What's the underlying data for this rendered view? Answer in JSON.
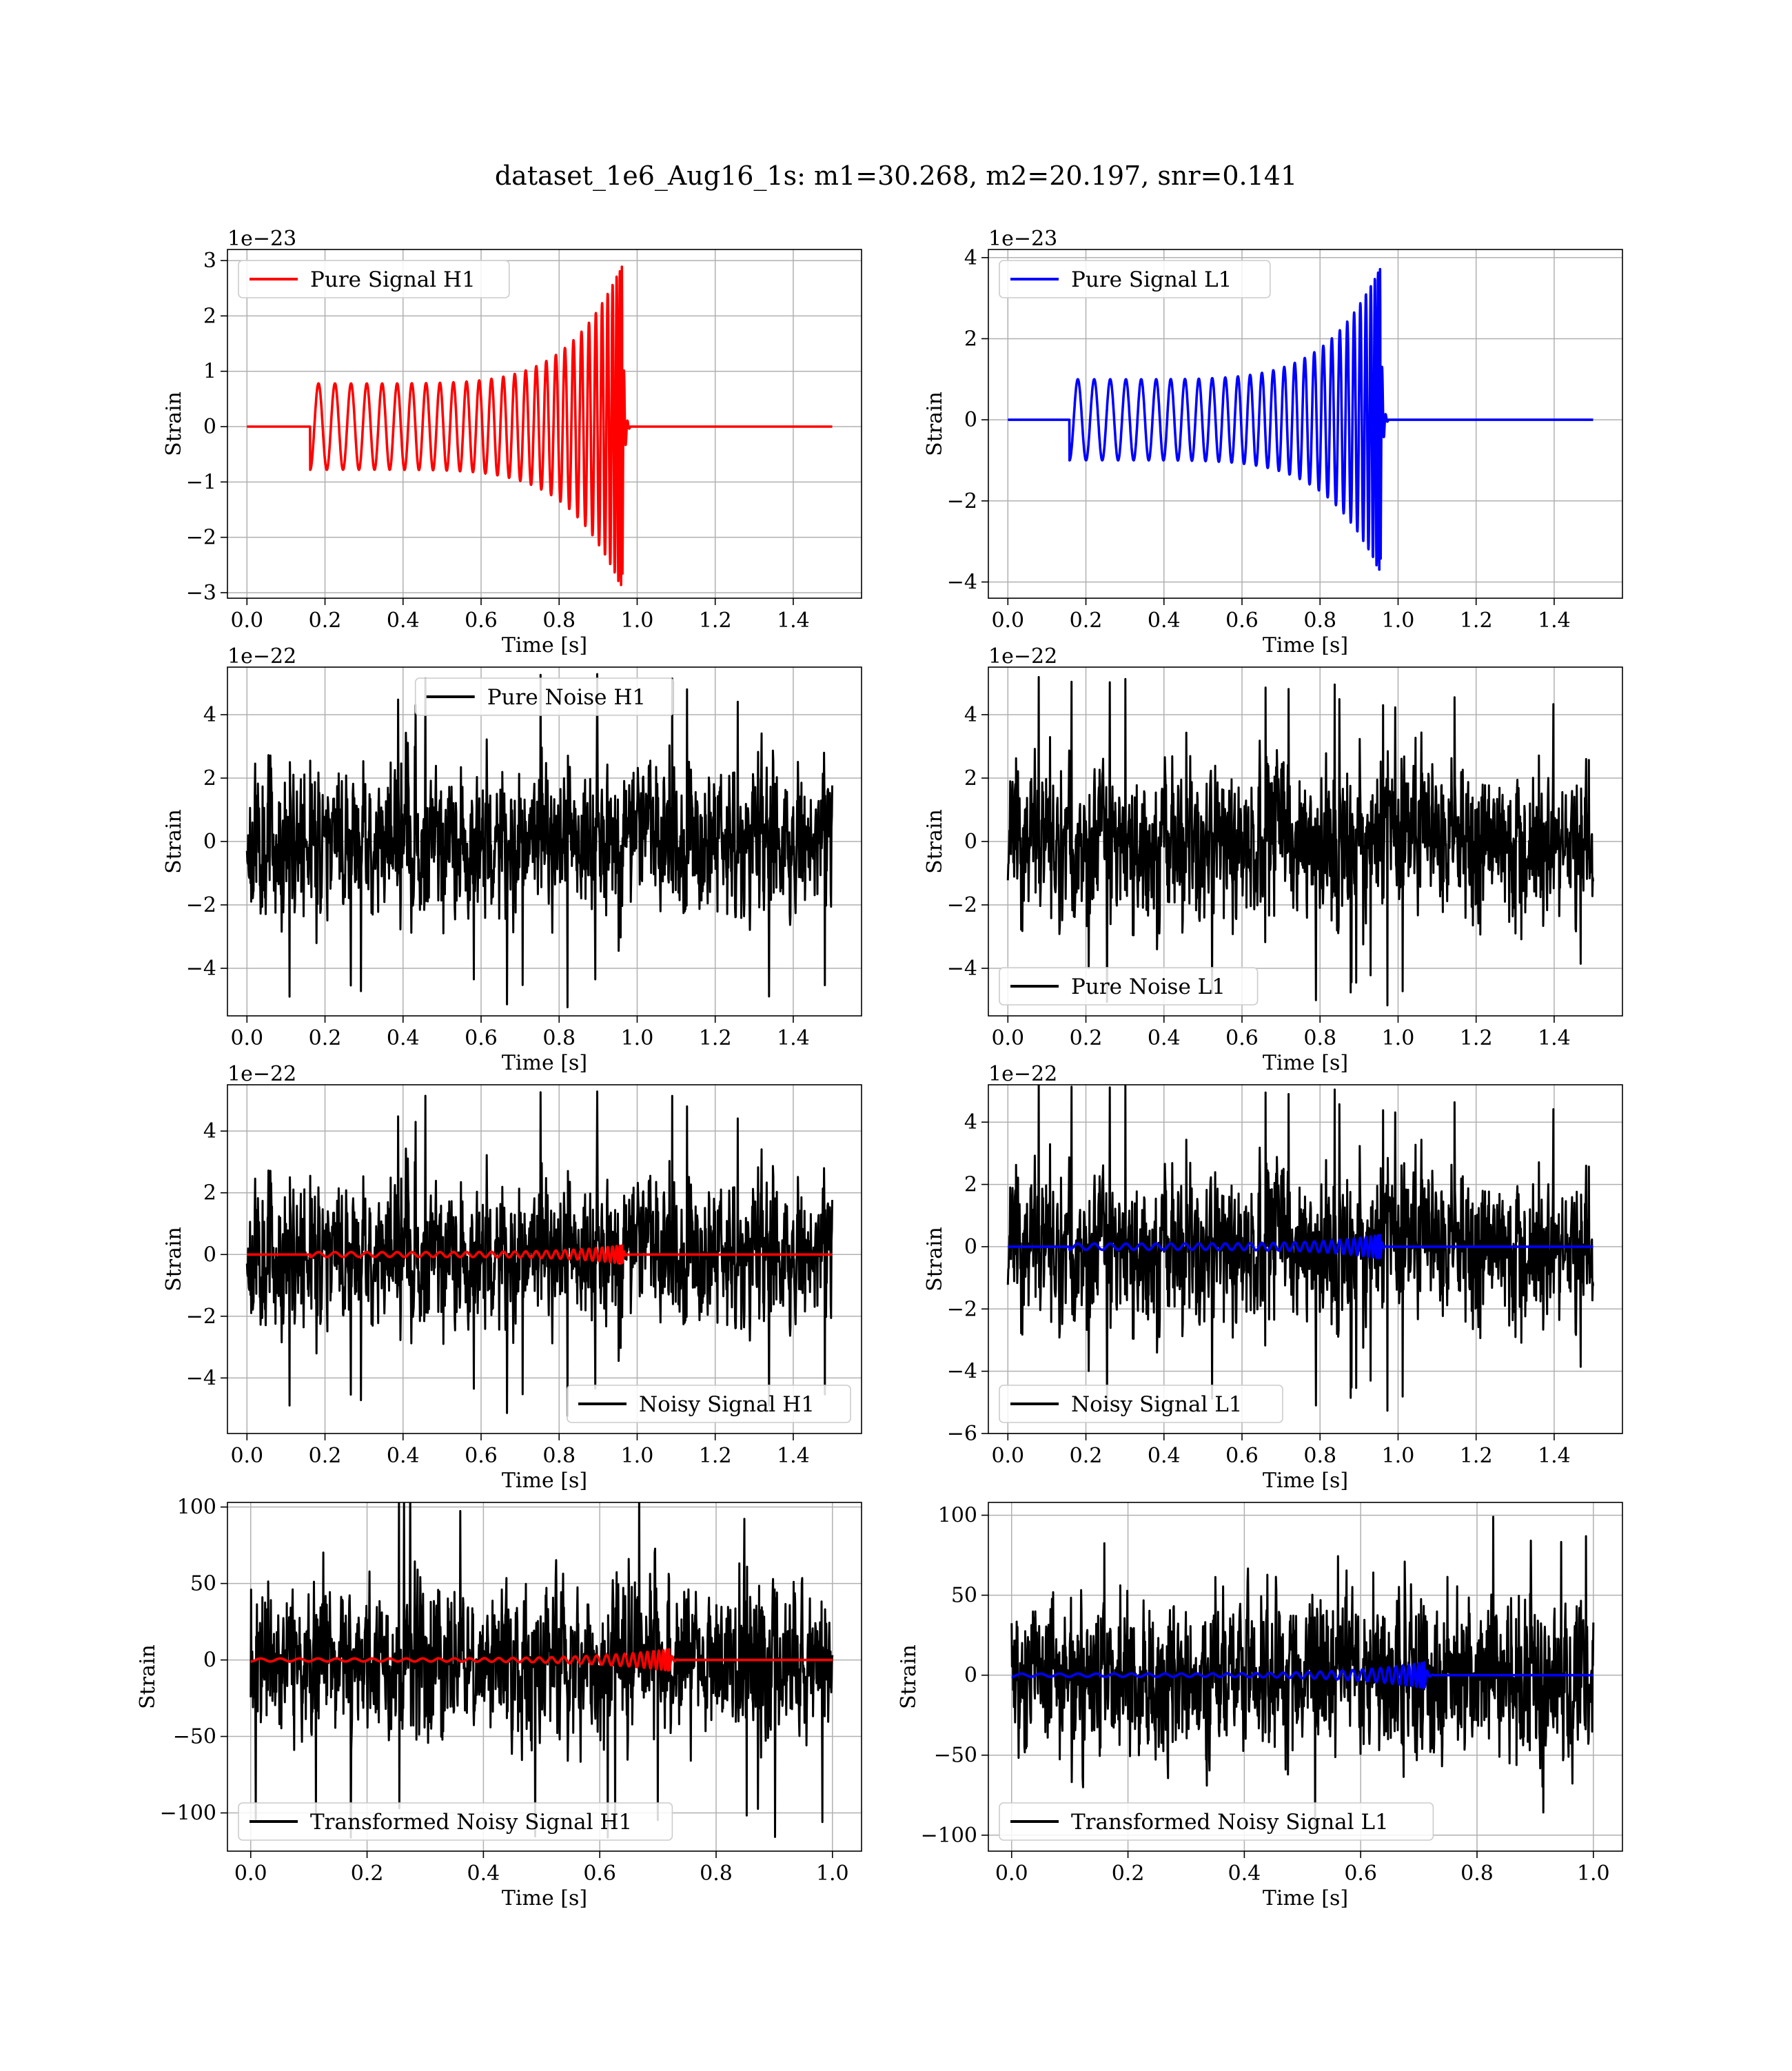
{
  "figure": {
    "title": "dataset_1e6_Aug16_1s: m1=30.268, m2=20.197, snr=0.141"
  },
  "chart_data": [
    {
      "type": "line",
      "id": "pure_signal_h1",
      "xlabel": "Time [s]",
      "ylabel": "Strain",
      "offset_label": "1e−23",
      "xlim": [
        -0.05,
        1.575
      ],
      "ylim": [
        -3.1,
        3.2
      ],
      "xticks": [
        0.0,
        0.2,
        0.4,
        0.6,
        0.8,
        1.0,
        1.2,
        1.4
      ],
      "xtick_labels": [
        "0.0",
        "0.2",
        "0.4",
        "0.6",
        "0.8",
        "1.0",
        "1.2",
        "1.4"
      ],
      "yticks": [
        -3,
        -2,
        -1,
        0,
        1,
        2,
        3
      ],
      "ytick_labels": [
        "−3",
        "−2",
        "−1",
        "0",
        "1",
        "2",
        "3"
      ],
      "legend_position": "upper-left",
      "grid": true,
      "series": [
        {
          "name": "Pure Signal H1",
          "color": "#ff0000",
          "kind": "chirp",
          "x_start": 0.0,
          "x_end": 1.5,
          "onset": 0.162,
          "merger": 0.962,
          "amp_start": 0.78,
          "amp_peak": 2.95,
          "cycles": 30
        }
      ]
    },
    {
      "type": "line",
      "id": "pure_signal_l1",
      "xlabel": "Time [s]",
      "ylabel": "Strain",
      "offset_label": "1e−23",
      "xlim": [
        -0.05,
        1.575
      ],
      "ylim": [
        -4.4,
        4.2
      ],
      "xticks": [
        0.0,
        0.2,
        0.4,
        0.6,
        0.8,
        1.0,
        1.2,
        1.4
      ],
      "xtick_labels": [
        "0.0",
        "0.2",
        "0.4",
        "0.6",
        "0.8",
        "1.0",
        "1.2",
        "1.4"
      ],
      "yticks": [
        -4,
        -2,
        0,
        2,
        4
      ],
      "ytick_labels": [
        "−4",
        "−2",
        "0",
        "2",
        "4"
      ],
      "legend_position": "upper-left",
      "grid": true,
      "series": [
        {
          "name": "Pure Signal L1",
          "color": "#0000ff",
          "kind": "chirp",
          "x_start": 0.0,
          "x_end": 1.5,
          "onset": 0.158,
          "merger": 0.955,
          "amp_start": 1.0,
          "amp_peak": 3.8,
          "cycles": 30
        }
      ]
    },
    {
      "type": "line",
      "id": "pure_noise_h1",
      "xlabel": "Time [s]",
      "ylabel": "Strain",
      "offset_label": "1e−22",
      "xlim": [
        -0.05,
        1.575
      ],
      "ylim": [
        -5.5,
        5.5
      ],
      "xticks": [
        0.0,
        0.2,
        0.4,
        0.6,
        0.8,
        1.0,
        1.2,
        1.4
      ],
      "xtick_labels": [
        "0.0",
        "0.2",
        "0.4",
        "0.6",
        "0.8",
        "1.0",
        "1.2",
        "1.4"
      ],
      "yticks": [
        -4,
        -2,
        0,
        2,
        4
      ],
      "ytick_labels": [
        "−4",
        "−2",
        "0",
        "2",
        "4"
      ],
      "legend_position": "upper-center",
      "grid": true,
      "series": [
        {
          "name": "Pure Noise H1",
          "color": "#000000",
          "kind": "noise",
          "x_start": 0.0,
          "x_end": 1.5,
          "sigma": 1.25,
          "max_abs": 5.3,
          "seed": 11
        }
      ]
    },
    {
      "type": "line",
      "id": "pure_noise_l1",
      "xlabel": "Time [s]",
      "ylabel": "Strain",
      "offset_label": "1e−22",
      "xlim": [
        -0.05,
        1.575
      ],
      "ylim": [
        -5.5,
        5.5
      ],
      "xticks": [
        0.0,
        0.2,
        0.4,
        0.6,
        0.8,
        1.0,
        1.2,
        1.4
      ],
      "xtick_labels": [
        "0.0",
        "0.2",
        "0.4",
        "0.6",
        "0.8",
        "1.0",
        "1.2",
        "1.4"
      ],
      "yticks": [
        -4,
        -2,
        0,
        2,
        4
      ],
      "ytick_labels": [
        "−4",
        "−2",
        "0",
        "2",
        "4"
      ],
      "legend_position": "lower-left",
      "grid": true,
      "series": [
        {
          "name": "Pure Noise L1",
          "color": "#000000",
          "kind": "noise",
          "x_start": 0.0,
          "x_end": 1.5,
          "sigma": 1.3,
          "max_abs": 5.2,
          "seed": 23
        }
      ]
    },
    {
      "type": "line",
      "id": "noisy_signal_h1",
      "xlabel": "Time [s]",
      "ylabel": "Strain",
      "offset_label": "1e−22",
      "xlim": [
        -0.05,
        1.575
      ],
      "ylim": [
        -5.8,
        5.5
      ],
      "xticks": [
        0.0,
        0.2,
        0.4,
        0.6,
        0.8,
        1.0,
        1.2,
        1.4
      ],
      "xtick_labels": [
        "0.0",
        "0.2",
        "0.4",
        "0.6",
        "0.8",
        "1.0",
        "1.2",
        "1.4"
      ],
      "yticks": [
        -4,
        -2,
        0,
        2,
        4
      ],
      "ytick_labels": [
        "−4",
        "−2",
        "0",
        "2",
        "4"
      ],
      "legend_position": "lower-right",
      "grid": true,
      "series": [
        {
          "name": "Noisy Signal H1",
          "color": "#000000",
          "kind": "noise",
          "x_start": 0.0,
          "x_end": 1.5,
          "sigma": 1.25,
          "max_abs": 5.3,
          "seed": 11
        },
        {
          "color": "#ff0000",
          "kind": "chirp",
          "x_start": 0.0,
          "x_end": 1.5,
          "onset": 0.162,
          "merger": 0.962,
          "amp_start": 0.078,
          "amp_peak": 0.295,
          "cycles": 30
        }
      ]
    },
    {
      "type": "line",
      "id": "noisy_signal_l1",
      "xlabel": "Time [s]",
      "ylabel": "Strain",
      "offset_label": "1e−22",
      "xlim": [
        -0.05,
        1.575
      ],
      "ylim": [
        -6.0,
        5.2
      ],
      "xticks": [
        0.0,
        0.2,
        0.4,
        0.6,
        0.8,
        1.0,
        1.2,
        1.4
      ],
      "xtick_labels": [
        "0.0",
        "0.2",
        "0.4",
        "0.6",
        "0.8",
        "1.0",
        "1.2",
        "1.4"
      ],
      "yticks": [
        -6,
        -4,
        -2,
        0,
        2,
        4
      ],
      "ytick_labels": [
        "−6",
        "−4",
        "−2",
        "0",
        "2",
        "4"
      ],
      "legend_position": "lower-left",
      "grid": true,
      "series": [
        {
          "name": "Noisy Signal L1",
          "color": "#000000",
          "kind": "noise",
          "x_start": 0.0,
          "x_end": 1.5,
          "sigma": 1.3,
          "max_abs": 5.3,
          "seed": 23
        },
        {
          "color": "#0000ff",
          "kind": "chirp",
          "x_start": 0.0,
          "x_end": 1.5,
          "onset": 0.158,
          "merger": 0.955,
          "amp_start": 0.1,
          "amp_peak": 0.38,
          "cycles": 30
        }
      ]
    },
    {
      "type": "line",
      "id": "transformed_noisy_signal_h1",
      "xlabel": "Time [s]",
      "ylabel": "Strain",
      "offset_label": "",
      "xlim": [
        -0.04,
        1.05
      ],
      "ylim": [
        -125,
        103
      ],
      "xticks": [
        0.0,
        0.2,
        0.4,
        0.6,
        0.8,
        1.0
      ],
      "xtick_labels": [
        "0.0",
        "0.2",
        "0.4",
        "0.6",
        "0.8",
        "1.0"
      ],
      "yticks": [
        -100,
        -50,
        0,
        50,
        100
      ],
      "ytick_labels": [
        "−100",
        "−50",
        "0",
        "50",
        "100"
      ],
      "legend_position": "lower-left",
      "grid": true,
      "series": [
        {
          "name": "Transformed Noisy Signal H1",
          "color": "#000000",
          "kind": "noise",
          "x_start": 0.0,
          "x_end": 1.0,
          "sigma": 26,
          "max_abs": 118,
          "seed": 37
        },
        {
          "color": "#ff0000",
          "kind": "chirp",
          "x_start": 0.0,
          "x_end": 1.0,
          "onset": 0.0,
          "merger": 0.72,
          "amp_start": 1.0,
          "amp_peak": 7.0,
          "cycles": 34
        }
      ]
    },
    {
      "type": "line",
      "id": "transformed_noisy_signal_l1",
      "xlabel": "Time [s]",
      "ylabel": "Strain",
      "offset_label": "",
      "xlim": [
        -0.04,
        1.05
      ],
      "ylim": [
        -110,
        108
      ],
      "xticks": [
        0.0,
        0.2,
        0.4,
        0.6,
        0.8,
        1.0
      ],
      "xtick_labels": [
        "0.0",
        "0.2",
        "0.4",
        "0.6",
        "0.8",
        "1.0"
      ],
      "yticks": [
        -100,
        -50,
        0,
        50,
        100
      ],
      "ytick_labels": [
        "−100",
        "−50",
        "0",
        "50",
        "100"
      ],
      "legend_position": "lower-left",
      "grid": true,
      "series": [
        {
          "name": "Transformed Noisy Signal L1",
          "color": "#000000",
          "kind": "noise",
          "x_start": 0.0,
          "x_end": 1.0,
          "sigma": 27,
          "max_abs": 100,
          "seed": 53
        },
        {
          "color": "#0000ff",
          "kind": "chirp",
          "x_start": 0.0,
          "x_end": 1.0,
          "onset": 0.0,
          "merger": 0.71,
          "amp_start": 1.0,
          "amp_peak": 8.0,
          "cycles": 34
        }
      ]
    }
  ]
}
